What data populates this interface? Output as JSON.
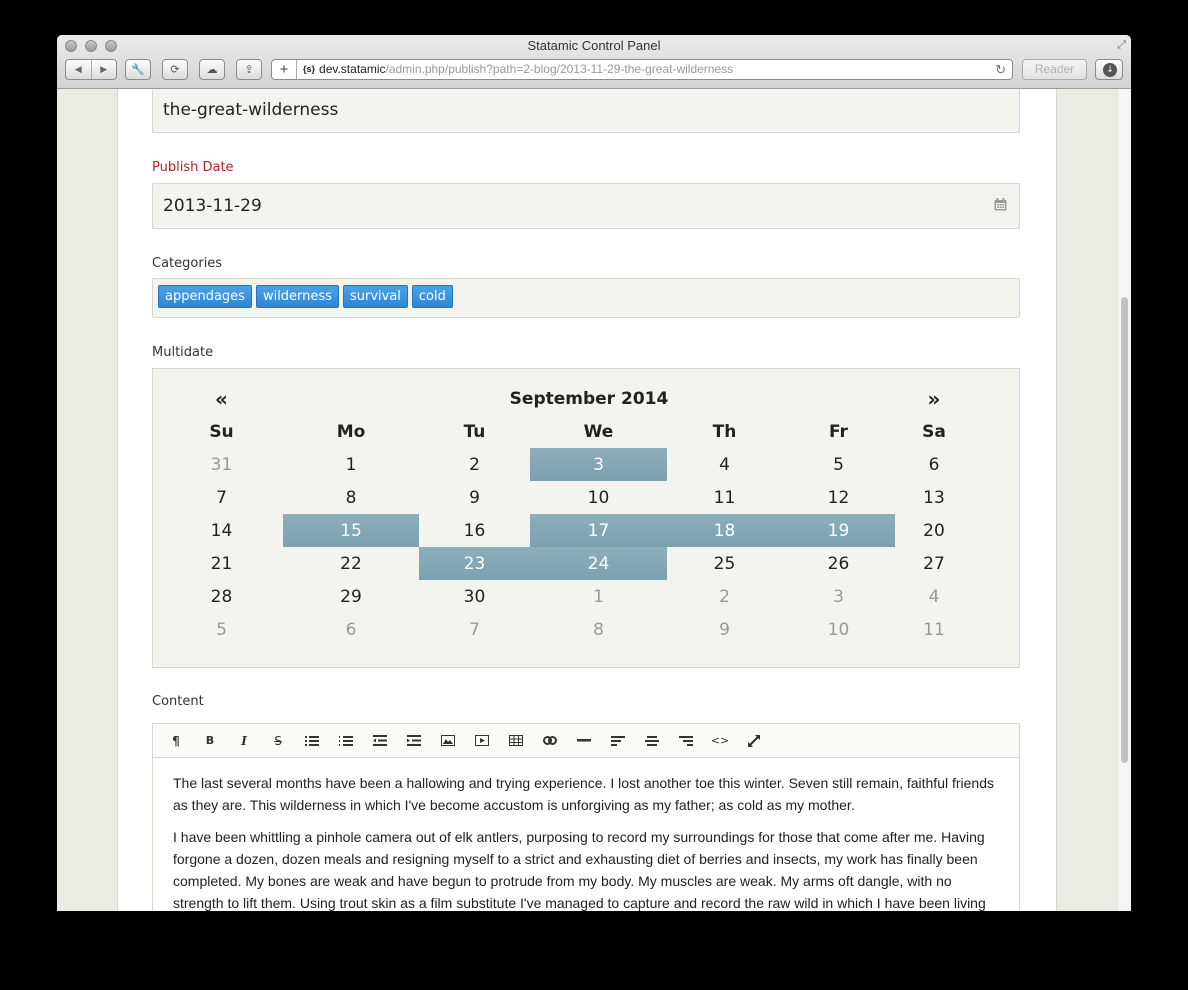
{
  "window": {
    "title": "Statamic Control Panel",
    "url_host": "dev.statamic",
    "url_path": "/admin.php/publish?path=2-blog/2013-11-29-the-great-wilderness",
    "favicon_text": "{s}",
    "reader_label": "Reader",
    "icons": [
      "back-icon",
      "forward-icon",
      "wrench-icon",
      "sync-icon",
      "cloud-icon",
      "share-icon",
      "add-tab-icon",
      "reload-icon",
      "download-icon",
      "fullscreen-icon"
    ]
  },
  "form": {
    "slug": {
      "value": "the-great-wilderness"
    },
    "publish_date": {
      "label": "Publish Date",
      "value": "2013-11-29",
      "icon": "calendar-icon",
      "label_color": "#b0202a"
    },
    "categories": {
      "label": "Categories",
      "tags": [
        "appendages",
        "wilderness",
        "survival",
        "cold"
      ],
      "tag_color": "#3b91de"
    },
    "multidate": {
      "label": "Multidate",
      "prev": "«",
      "next": "»",
      "month": "September 2014",
      "weekdays": [
        "Su",
        "Mo",
        "Tu",
        "We",
        "Th",
        "Fr",
        "Sa"
      ],
      "highlight_color": "#84a6b5",
      "weeks": [
        [
          {
            "d": "31",
            "o": 1
          },
          {
            "d": "1"
          },
          {
            "d": "2"
          },
          {
            "d": "3",
            "a": 1
          },
          {
            "d": "4"
          },
          {
            "d": "5"
          },
          {
            "d": "6"
          }
        ],
        [
          {
            "d": "7"
          },
          {
            "d": "8"
          },
          {
            "d": "9"
          },
          {
            "d": "10"
          },
          {
            "d": "11"
          },
          {
            "d": "12"
          },
          {
            "d": "13"
          }
        ],
        [
          {
            "d": "14"
          },
          {
            "d": "15",
            "a": 1
          },
          {
            "d": "16"
          },
          {
            "d": "17",
            "a": 1
          },
          {
            "d": "18",
            "a": 1
          },
          {
            "d": "19",
            "a": 1
          },
          {
            "d": "20"
          }
        ],
        [
          {
            "d": "21"
          },
          {
            "d": "22"
          },
          {
            "d": "23",
            "a": 1
          },
          {
            "d": "24",
            "a": 1
          },
          {
            "d": "25"
          },
          {
            "d": "26"
          },
          {
            "d": "27"
          }
        ],
        [
          {
            "d": "28"
          },
          {
            "d": "29"
          },
          {
            "d": "30"
          },
          {
            "d": "1",
            "o": 1
          },
          {
            "d": "2",
            "o": 1
          },
          {
            "d": "3",
            "o": 1
          },
          {
            "d": "4",
            "o": 1
          }
        ],
        [
          {
            "d": "5",
            "o": 1
          },
          {
            "d": "6",
            "o": 1
          },
          {
            "d": "7",
            "o": 1
          },
          {
            "d": "8",
            "o": 1
          },
          {
            "d": "9",
            "o": 1
          },
          {
            "d": "10",
            "o": 1
          },
          {
            "d": "11",
            "o": 1
          }
        ]
      ],
      "selected_dates": [
        "2014-09-03",
        "2014-09-15",
        "2014-09-17",
        "2014-09-18",
        "2014-09-19",
        "2014-09-23",
        "2014-09-24"
      ]
    },
    "content": {
      "label": "Content",
      "toolbar": [
        "paragraph",
        "bold",
        "italic",
        "strikethrough",
        "unordered-list",
        "ordered-list",
        "outdent",
        "indent",
        "image",
        "video",
        "table",
        "link",
        "horizontal-rule",
        "align-left",
        "align-center",
        "align-right",
        "html",
        "fullscreen"
      ],
      "paragraphs": [
        "The last several months have been a hallowing and trying experience. I lost another toe this winter. Seven still remain, faithful friends as they are. This wilderness in which I've become accustom is unforgiving as my father; as cold as my mother.",
        "I have been whittling a pinhole camera out of elk antlers, purposing to record my surroundings for those that come after me. Having forgone a dozen, dozen meals and resigning myself to a strict and exhausting diet of berries and insects, my work has finally been completed. My bones are weak and have begun to protrude from my body. My muscles are weak. My arms oft dangle, with no strength to lift them. Using trout skin as a film substitute I've managed to capture and record the raw wild in which I have been living"
      ]
    }
  }
}
